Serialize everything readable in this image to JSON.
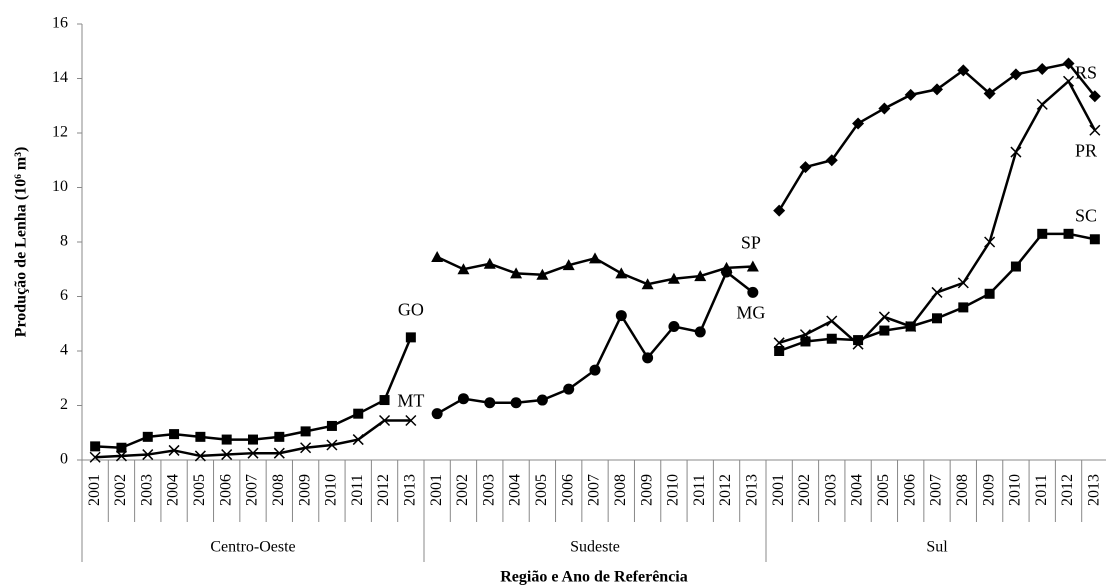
{
  "chart_data": {
    "type": "line",
    "ylabel": "Produção de Lenha (10⁶ m³)",
    "xlabel": "Região e Ano de Referência",
    "groups": [
      "Centro-Oeste",
      "Sudeste",
      "Sul"
    ],
    "categories": [
      "2001",
      "2002",
      "2003",
      "2004",
      "2005",
      "2006",
      "2007",
      "2008",
      "2009",
      "2010",
      "2011",
      "2012",
      "2013",
      "2001",
      "2002",
      "2003",
      "2004",
      "2005",
      "2006",
      "2007",
      "2008",
      "2009",
      "2010",
      "2011",
      "2012",
      "2013",
      "2001",
      "2002",
      "2003",
      "2004",
      "2005",
      "2006",
      "2007",
      "2008",
      "2009",
      "2010",
      "2011",
      "2012",
      "2013"
    ],
    "ylim": [
      0,
      16
    ],
    "yticks": [
      0,
      2,
      4,
      6,
      8,
      10,
      12,
      14,
      16
    ],
    "grid": false,
    "series": [
      {
        "name": "GO",
        "color": "#000000",
        "marker": "square",
        "values": [
          0.5,
          0.45,
          0.85,
          0.95,
          0.85,
          0.75,
          0.75,
          0.85,
          1.05,
          1.25,
          1.7,
          2.2,
          4.5,
          null,
          null,
          null,
          null,
          null,
          null,
          null,
          null,
          null,
          null,
          null,
          null,
          null,
          null,
          null,
          null,
          null,
          null,
          null,
          null,
          null,
          null,
          null,
          null,
          null,
          null
        ]
      },
      {
        "name": "MT",
        "color": "#000000",
        "marker": "x",
        "values": [
          0.1,
          0.15,
          0.2,
          0.35,
          0.15,
          0.2,
          0.25,
          0.25,
          0.45,
          0.55,
          0.75,
          1.45,
          1.45,
          null,
          null,
          null,
          null,
          null,
          null,
          null,
          null,
          null,
          null,
          null,
          null,
          null,
          null,
          null,
          null,
          null,
          null,
          null,
          null,
          null,
          null,
          null,
          null,
          null,
          null
        ]
      },
      {
        "name": "SP",
        "color": "#000000",
        "marker": "triangle",
        "values": [
          null,
          null,
          null,
          null,
          null,
          null,
          null,
          null,
          null,
          null,
          null,
          null,
          null,
          7.45,
          7.0,
          7.2,
          6.85,
          6.8,
          7.15,
          7.4,
          6.85,
          6.45,
          6.65,
          6.75,
          7.05,
          7.1,
          null,
          null,
          null,
          null,
          null,
          null,
          null,
          null,
          null,
          null,
          null,
          null,
          null
        ]
      },
      {
        "name": "MG",
        "color": "#000000",
        "marker": "circle",
        "values": [
          null,
          null,
          null,
          null,
          null,
          null,
          null,
          null,
          null,
          null,
          null,
          null,
          null,
          1.7,
          2.25,
          2.1,
          2.1,
          2.2,
          2.6,
          3.3,
          5.3,
          3.75,
          4.9,
          4.7,
          6.9,
          6.15,
          null,
          null,
          null,
          null,
          null,
          null,
          null,
          null,
          null,
          null,
          null,
          null,
          null
        ]
      },
      {
        "name": "RS",
        "color": "#000000",
        "marker": "diamond",
        "values": [
          null,
          null,
          null,
          null,
          null,
          null,
          null,
          null,
          null,
          null,
          null,
          null,
          null,
          null,
          null,
          null,
          null,
          null,
          null,
          null,
          null,
          null,
          null,
          null,
          null,
          null,
          9.15,
          10.75,
          11.0,
          12.35,
          12.9,
          13.4,
          13.6,
          14.3,
          13.45,
          14.15,
          14.35,
          14.55,
          13.35
        ]
      },
      {
        "name": "PR",
        "color": "#000000",
        "marker": "x",
        "values": [
          null,
          null,
          null,
          null,
          null,
          null,
          null,
          null,
          null,
          null,
          null,
          null,
          null,
          null,
          null,
          null,
          null,
          null,
          null,
          null,
          null,
          null,
          null,
          null,
          null,
          null,
          4.3,
          4.6,
          5.1,
          4.25,
          5.25,
          4.9,
          6.15,
          6.5,
          8.0,
          11.3,
          13.05,
          13.9,
          12.1
        ]
      },
      {
        "name": "SC",
        "color": "#000000",
        "marker": "square",
        "values": [
          null,
          null,
          null,
          null,
          null,
          null,
          null,
          null,
          null,
          null,
          null,
          null,
          null,
          null,
          null,
          null,
          null,
          null,
          null,
          null,
          null,
          null,
          null,
          null,
          null,
          null,
          4.0,
          4.35,
          4.45,
          4.4,
          4.75,
          4.9,
          5.2,
          5.6,
          6.1,
          7.1,
          8.3,
          8.3,
          8.1
        ]
      }
    ]
  }
}
